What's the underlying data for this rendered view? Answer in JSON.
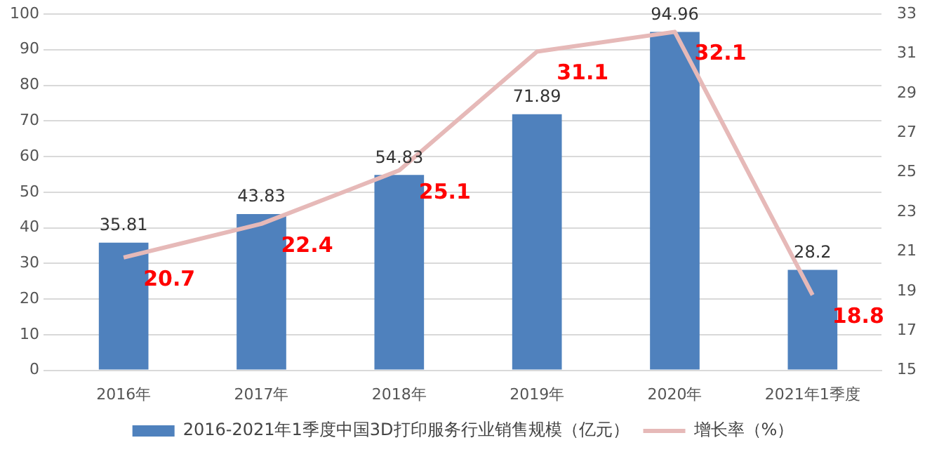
{
  "chart_data": {
    "type": "bar",
    "categories": [
      "2016年",
      "2017年",
      "2018年",
      "2019年",
      "2020年",
      "2021年1季度"
    ],
    "series": [
      {
        "name": "2016-2021年1季度中国3D打印服务行业销售规模（亿元）",
        "color": "#4f81bd",
        "values": [
          35.81,
          43.83,
          54.83,
          71.89,
          94.96,
          28.2
        ]
      },
      {
        "name": "增长率（%）",
        "type": "line",
        "axis": "y2",
        "color": "#e6b9b8",
        "values": [
          20.7,
          22.4,
          25.1,
          31.1,
          32.1,
          18.8
        ]
      }
    ],
    "ylim": [
      0,
      100
    ],
    "yticks": [
      0,
      10,
      20,
      30,
      40,
      50,
      60,
      70,
      80,
      90,
      100
    ],
    "y2lim": [
      15,
      33
    ],
    "y2ticks": [
      15,
      17,
      19,
      21,
      23,
      25,
      27,
      29,
      31,
      33
    ],
    "grid": "y",
    "legend": "bottom",
    "marker": "none",
    "data_labels": true
  }
}
